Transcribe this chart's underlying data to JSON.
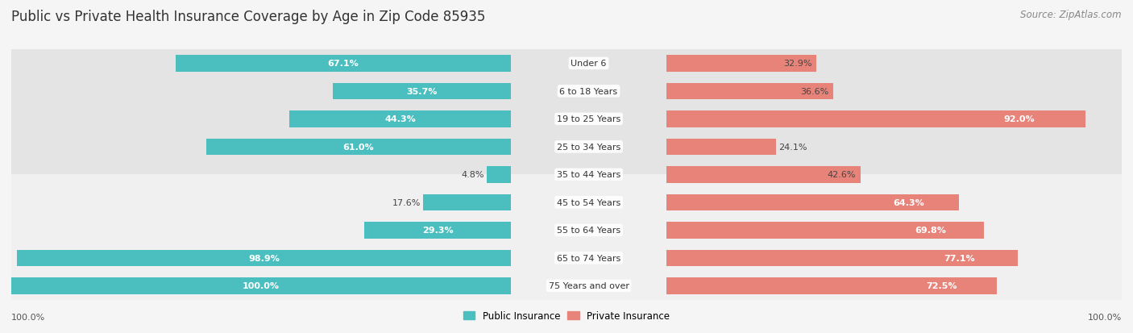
{
  "title": "Public vs Private Health Insurance Coverage by Age in Zip Code 85935",
  "source": "Source: ZipAtlas.com",
  "categories": [
    "Under 6",
    "6 to 18 Years",
    "19 to 25 Years",
    "25 to 34 Years",
    "35 to 44 Years",
    "45 to 54 Years",
    "55 to 64 Years",
    "65 to 74 Years",
    "75 Years and over"
  ],
  "public_values": [
    67.1,
    35.7,
    44.3,
    61.0,
    4.8,
    17.6,
    29.3,
    98.9,
    100.0
  ],
  "private_values": [
    32.9,
    36.6,
    92.0,
    24.1,
    42.6,
    64.3,
    69.8,
    77.1,
    72.5
  ],
  "public_color": "#4bbfbf",
  "private_color": "#e8837a",
  "row_bg_colors": [
    "#f0f0f0",
    "#e4e4e4"
  ],
  "title_fontsize": 12,
  "source_fontsize": 8.5,
  "label_fontsize": 8,
  "category_fontsize": 8,
  "tick_fontsize": 8,
  "bar_height": 0.6,
  "max_value": 100.0,
  "fig_bg": "#f5f5f5"
}
